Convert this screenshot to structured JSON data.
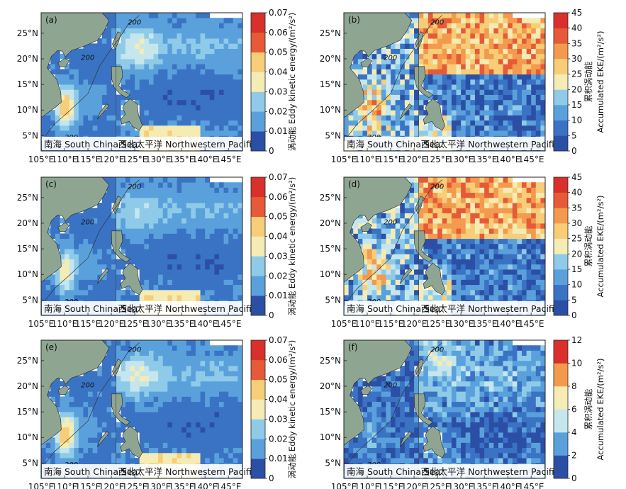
{
  "figure": {
    "lat_ticks": [
      "5°N",
      "10°N",
      "15°N",
      "20°N",
      "25°N"
    ],
    "lon_ticks": [
      "105°E",
      "110°E",
      "115°E",
      "120°E",
      "125°E",
      "130°E",
      "135°E",
      "140°E",
      "145°E"
    ],
    "region_scs": "南海 South China Sea",
    "region_nwp": "西北太平洋 Northwestern Pacific",
    "contour_label": "200",
    "colorbar_eke_label": "涡动能 Eddy kinetic energy/(m²/s²)",
    "colorbar_acc_label_cn": "累积涡动能",
    "colorbar_acc_label_en": "Accumulated EKE/(m²/s²)",
    "colors": {
      "land": "#8ea592",
      "scale": [
        "#2c4fa6",
        "#3a73c4",
        "#5aa1dc",
        "#8fcbe8",
        "#c6e6ee",
        "#f4ecb4",
        "#f7cd77",
        "#f39a4f",
        "#e65a38",
        "#d9302b"
      ]
    }
  },
  "chart_data": [
    {
      "type": "heatmap",
      "panel_label": "(a)",
      "variable": "eke",
      "colorbar_ticks": [
        "0",
        "0.01",
        "0.02",
        "0.03",
        "0.04",
        "0.05",
        "0.06",
        "0.07"
      ],
      "vmin": 0,
      "vmax": 0.07,
      "lon_range": [
        105,
        148
      ],
      "lat_range": [
        2,
        29
      ]
    },
    {
      "type": "heatmap",
      "panel_label": "(b)",
      "variable": "accumulated_eke",
      "colorbar_ticks": [
        "0",
        "5",
        "10",
        "15",
        "20",
        "25",
        "30",
        "35",
        "40",
        "45"
      ],
      "vmin": 0,
      "vmax": 45,
      "lon_range": [
        105,
        148
      ],
      "lat_range": [
        2,
        29
      ]
    },
    {
      "type": "heatmap",
      "panel_label": "(c)",
      "variable": "eke",
      "colorbar_ticks": [
        "0",
        "0.01",
        "0.02",
        "0.03",
        "0.04",
        "0.05",
        "0.06",
        "0.07"
      ],
      "vmin": 0,
      "vmax": 0.07,
      "lon_range": [
        105,
        148
      ],
      "lat_range": [
        2,
        29
      ]
    },
    {
      "type": "heatmap",
      "panel_label": "(d)",
      "variable": "accumulated_eke",
      "colorbar_ticks": [
        "0",
        "5",
        "10",
        "15",
        "20",
        "25",
        "30",
        "35",
        "40",
        "45"
      ],
      "vmin": 0,
      "vmax": 45,
      "lon_range": [
        105,
        148
      ],
      "lat_range": [
        2,
        29
      ]
    },
    {
      "type": "heatmap",
      "panel_label": "(e)",
      "variable": "eke",
      "colorbar_ticks": [
        "0",
        "0.01",
        "0.02",
        "0.03",
        "0.04",
        "0.05",
        "0.06",
        "0.07"
      ],
      "vmin": 0,
      "vmax": 0.07,
      "lon_range": [
        105,
        148
      ],
      "lat_range": [
        2,
        29
      ]
    },
    {
      "type": "heatmap",
      "panel_label": "(f)",
      "variable": "accumulated_eke",
      "colorbar_ticks": [
        "0",
        "2",
        "4",
        "6",
        "8",
        "10",
        "12"
      ],
      "vmin": 0,
      "vmax": 12,
      "lon_range": [
        105,
        148
      ],
      "lat_range": [
        2,
        29
      ]
    }
  ]
}
